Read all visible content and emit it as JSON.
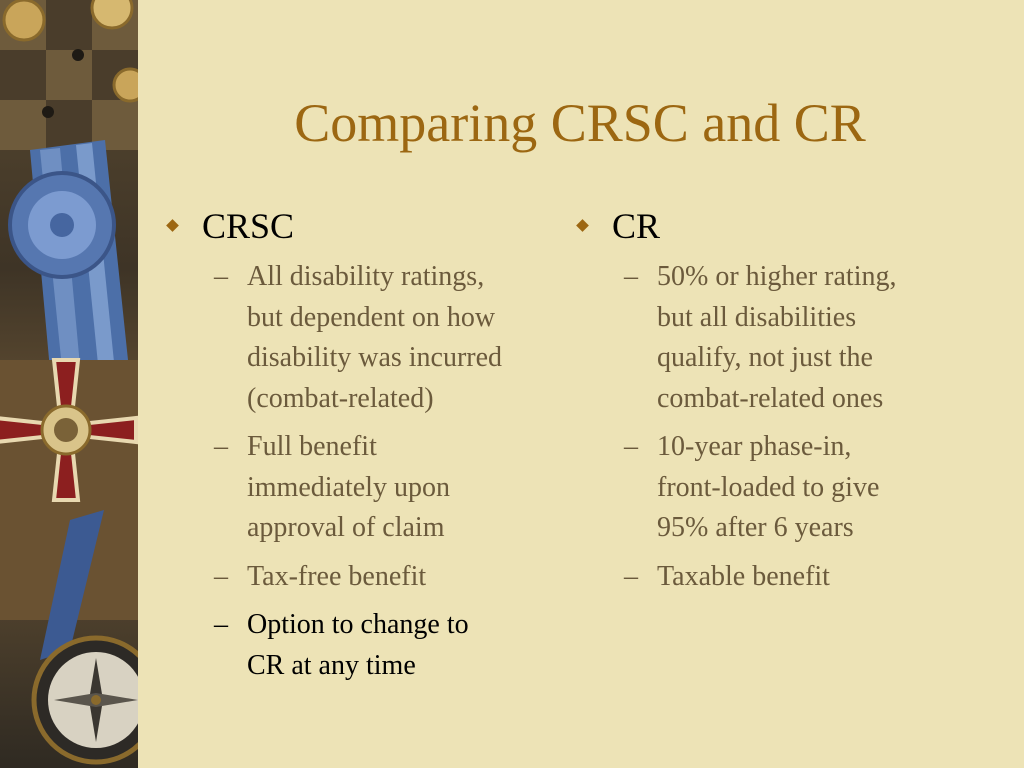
{
  "title": "Comparing CRSC and CR",
  "left_column": {
    "heading": "CRSC",
    "items": [
      "All disability ratings,\nbut dependent on how\ndisability was incurred\n(combat-related)",
      " Full benefit\nimmediately upon\napproval of claim",
      "Tax-free benefit",
      "Option to change to\nCR at any time"
    ]
  },
  "right_column": {
    "heading": "CR",
    "items": [
      "50% or higher rating,\nbut all disabilities\nqualify, not just the\ncombat-related ones",
      "10-year phase-in,\nfront-loaded to give\n95% after 6 years",
      "Taxable benefit"
    ]
  },
  "dash": "–",
  "colors": {
    "background": "#ede3b6",
    "title": "#9c6712",
    "bullet": "#9c6712",
    "subtext": "#6b5a3c",
    "emphasis": "#000000"
  },
  "icons": [
    "medal-illustration",
    "compass-illustration",
    "diamond-bullet-icon"
  ]
}
